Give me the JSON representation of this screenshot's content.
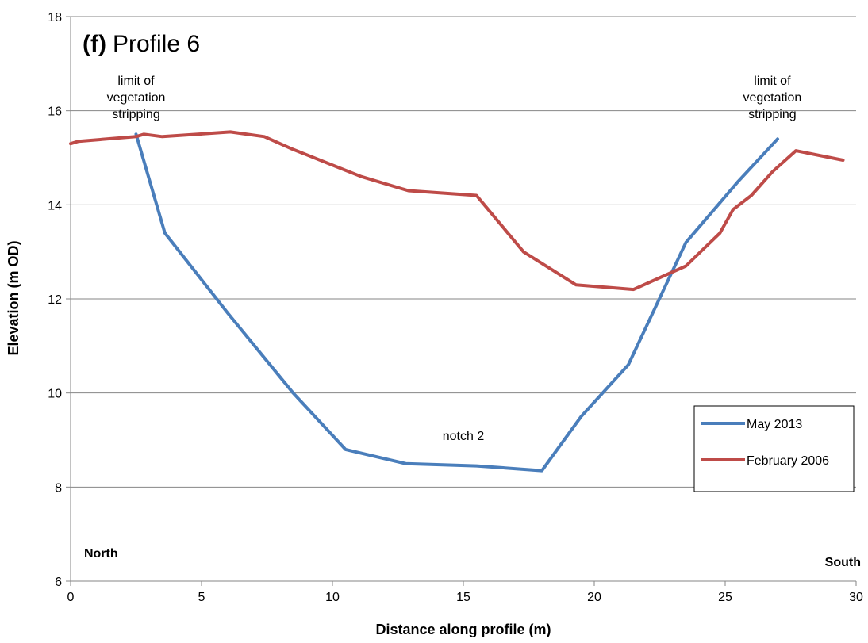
{
  "chart_data": {
    "type": "line",
    "title_prefix": "(f)",
    "title": "Profile 6",
    "xlabel": "Distance along profile (m)",
    "ylabel": "Elevation (m OD)",
    "xlim": [
      0,
      30
    ],
    "ylim": [
      6,
      18
    ],
    "xticks": [
      "0",
      "5",
      "10",
      "15",
      "20",
      "25",
      "30"
    ],
    "yticks": [
      "6",
      "8",
      "10",
      "12",
      "14",
      "16",
      "18"
    ],
    "grid": "horizontal",
    "legend_position": "lower-right",
    "series": [
      {
        "name": "May 2013",
        "color": "#4a7ebb",
        "x": [
          2.5,
          3.6,
          6.0,
          8.5,
          10.5,
          12.8,
          15.5,
          18.0,
          19.5,
          21.3,
          23.5,
          25.5,
          27.0
        ],
        "y": [
          15.5,
          13.4,
          11.7,
          10.0,
          8.8,
          8.5,
          8.45,
          8.35,
          9.5,
          10.6,
          13.2,
          14.5,
          15.4
        ]
      },
      {
        "name": "February 2006",
        "color": "#be4b48",
        "x": [
          0,
          0.3,
          2.5,
          2.8,
          3.5,
          6.1,
          7.4,
          8.4,
          10.2,
          11.1,
          12.9,
          15.5,
          17.3,
          19.3,
          21.5,
          23.5,
          24.8,
          25.3,
          26.0,
          26.8,
          27.7,
          29.5
        ],
        "y": [
          15.3,
          15.35,
          15.45,
          15.5,
          15.45,
          15.55,
          15.45,
          15.2,
          14.8,
          14.6,
          14.3,
          14.2,
          13.0,
          12.3,
          12.2,
          12.7,
          13.4,
          13.9,
          14.2,
          14.7,
          15.15,
          14.95
        ]
      }
    ],
    "annotations": [
      {
        "id": "left",
        "lines": [
          "limit of",
          "vegetation",
          "stripping"
        ],
        "x": 2.5,
        "y": 16.55
      },
      {
        "id": "right",
        "lines": [
          "limit of",
          "vegetation",
          "stripping"
        ],
        "x": 26.8,
        "y": 16.55
      },
      {
        "id": "notch",
        "lines": [
          "notch 2"
        ],
        "x": 15.0,
        "y": 9.0
      }
    ],
    "corner_labels": {
      "left": "North",
      "right": "South"
    }
  }
}
